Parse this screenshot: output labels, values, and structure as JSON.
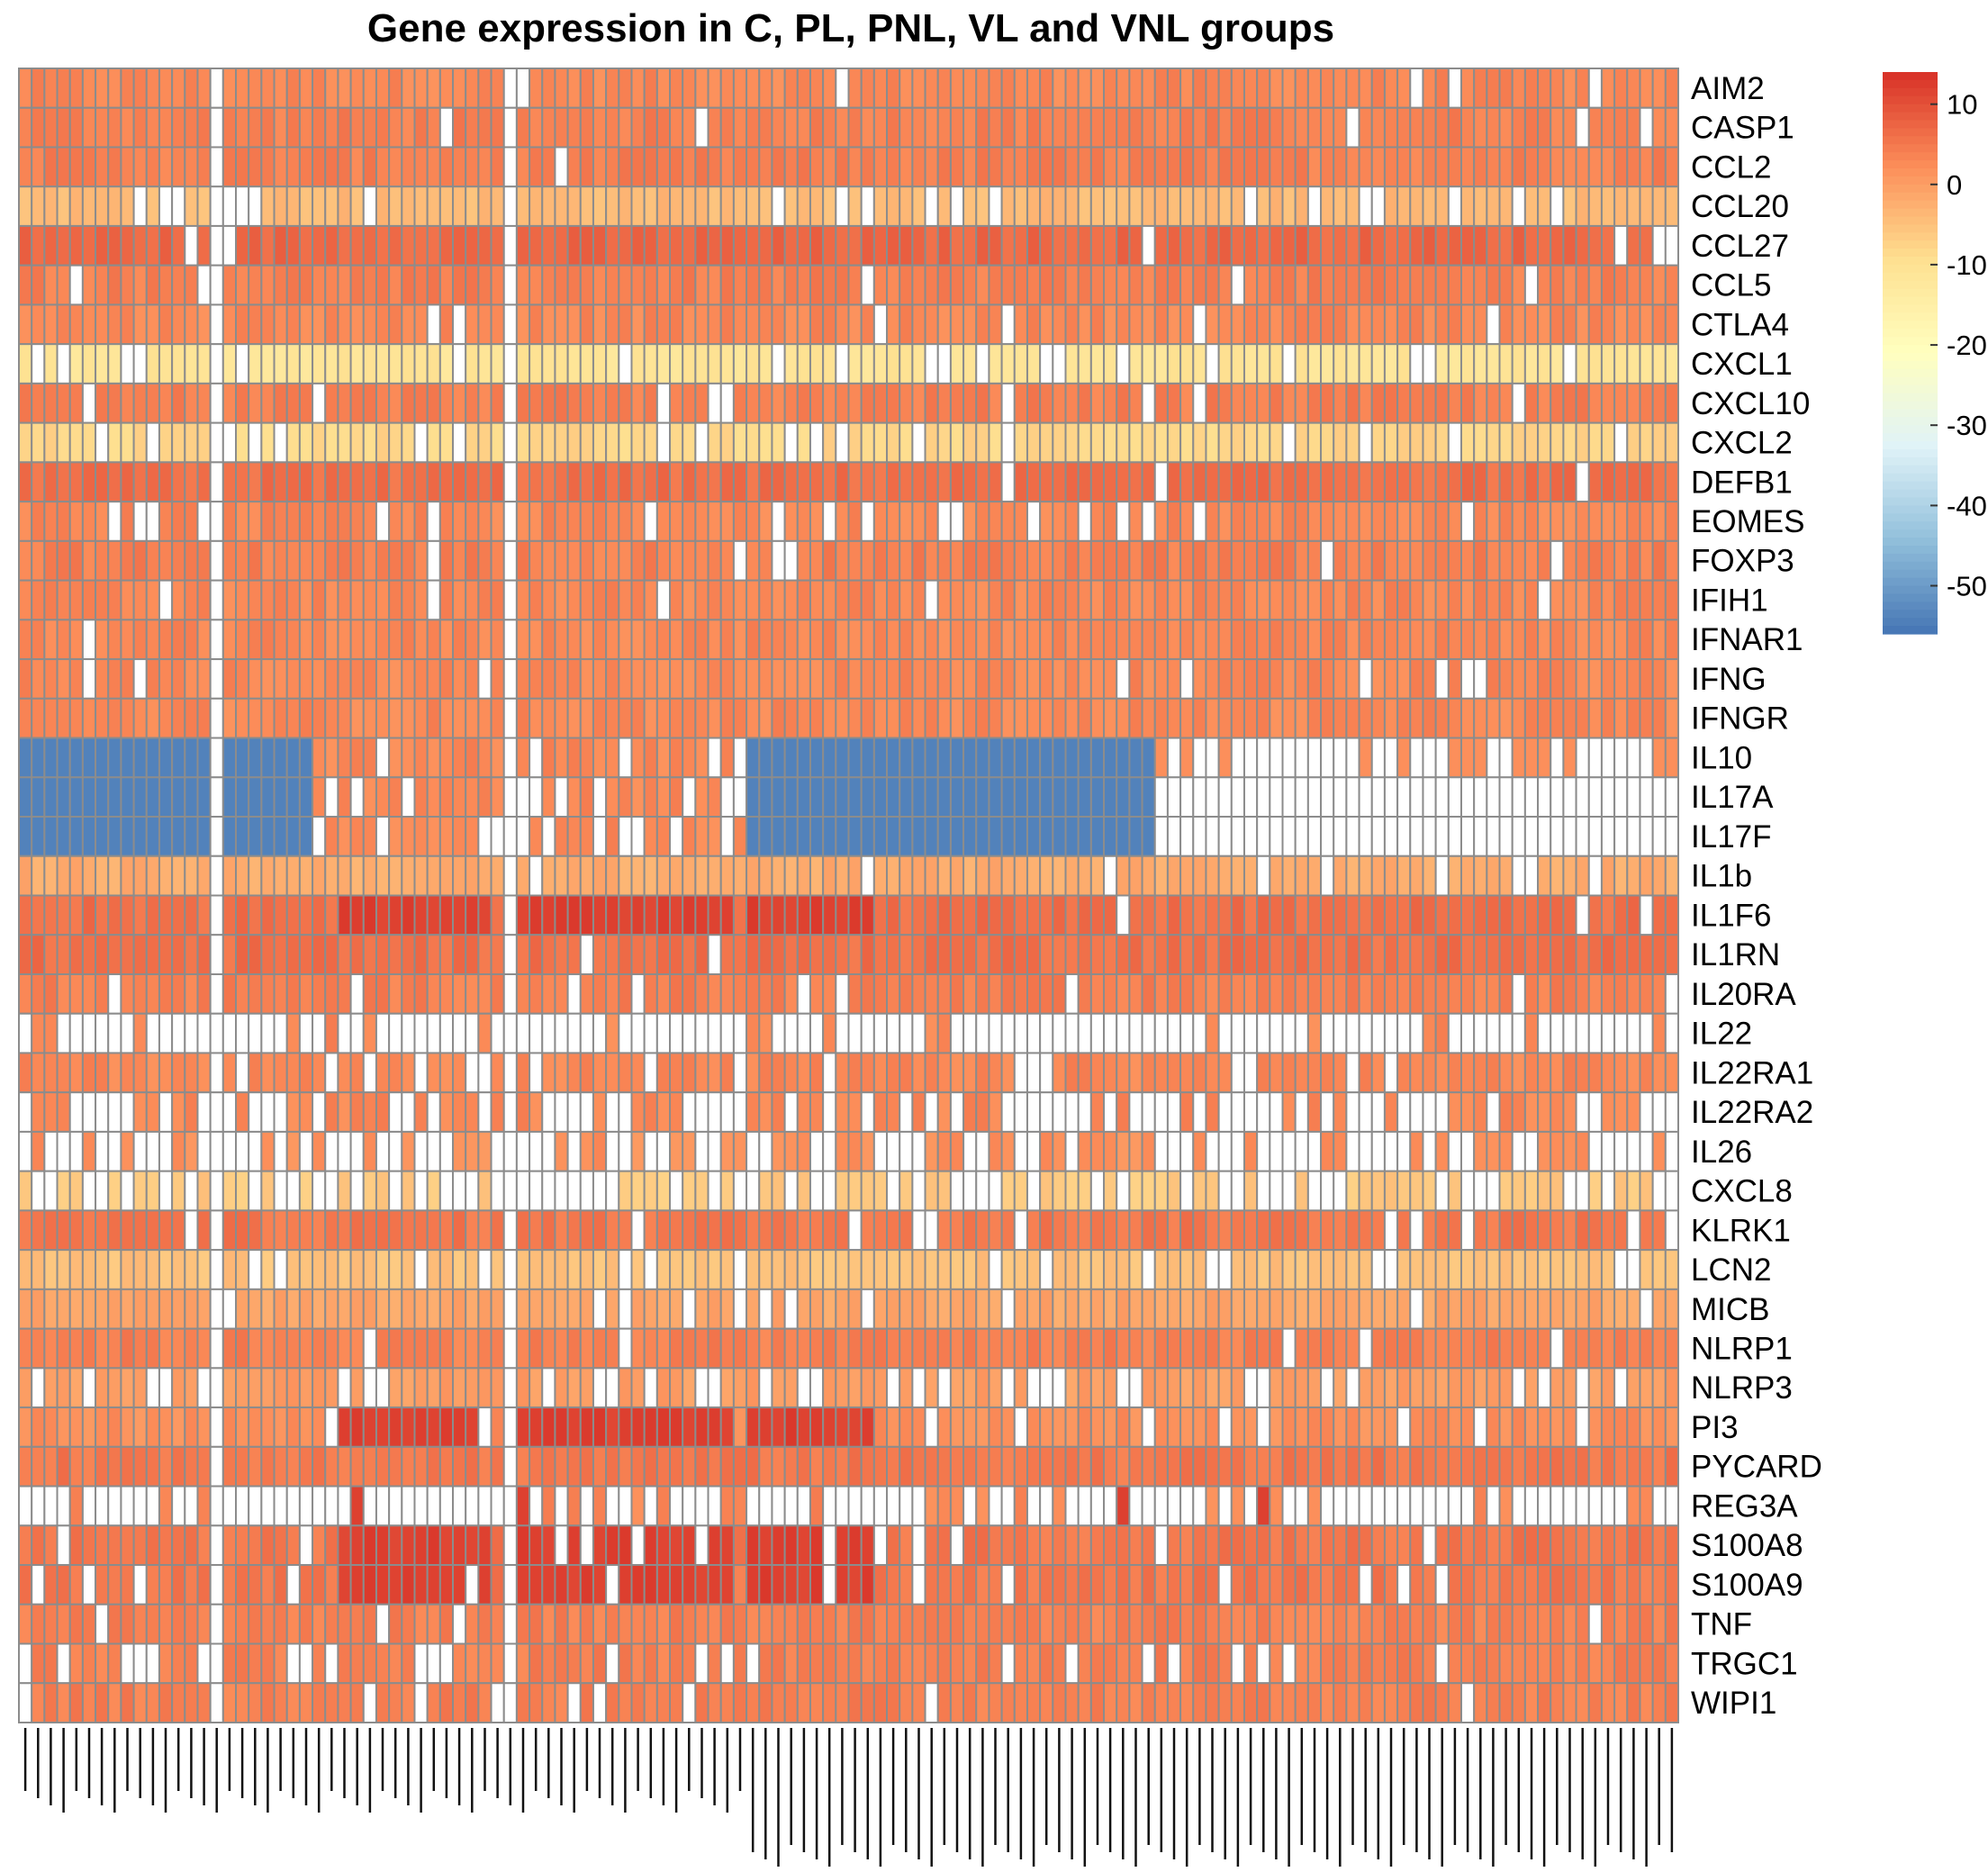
{
  "chart_data": {
    "type": "heatmap",
    "title": "Gene expression in C, PL, PNL, VL and VNL groups",
    "genes": [
      "AIM2",
      "CASP1",
      "CCL2",
      "CCL20",
      "CCL27",
      "CCL5",
      "CTLA4",
      "CXCL1",
      "CXCL10",
      "CXCL2",
      "DEFB1",
      "EOMES",
      "FOXP3",
      "IFIH1",
      "IFNAR1",
      "IFNG",
      "IFNGR",
      "IL10",
      "IL17A",
      "IL17F",
      "IL1b",
      "IL1F6",
      "IL1RN",
      "IL20RA",
      "IL22",
      "IL22RA1",
      "IL22RA2",
      "IL26",
      "CXCL8",
      "KLRK1",
      "LCN2",
      "MICB",
      "NLRP1",
      "NLRP3",
      "PI3",
      "PYCARD",
      "REG3A",
      "S100A8",
      "S100A9",
      "TNF",
      "TRGC1",
      "WIPI1"
    ],
    "n_samples": 130,
    "color_scale": {
      "min": -56,
      "max": 14,
      "ticks": [
        10,
        0,
        -10,
        -20,
        -30,
        -40,
        -50
      ],
      "colors": [
        "#4575b4",
        "#91bfdb",
        "#e0f3f8",
        "#ffffbf",
        "#fee090",
        "#fc8d59",
        "#d73027"
      ]
    },
    "missing_color": "#ffffff",
    "grid_color": "#8c8c8c",
    "column_blocks": {
      "blank_columns": [
        15,
        38
      ],
      "il_low_block_1": [
        0,
        22
      ],
      "il_low_block_2": [
        57,
        88
      ],
      "il_missing_block": [
        89,
        129
      ],
      "high_s100_blocks": [
        [
          25,
          36
        ],
        [
          39,
          55
        ],
        [
          57,
          66
        ]
      ]
    },
    "values_note": "sample labels are rendered as illegible overlapping rotated text in the original"
  }
}
